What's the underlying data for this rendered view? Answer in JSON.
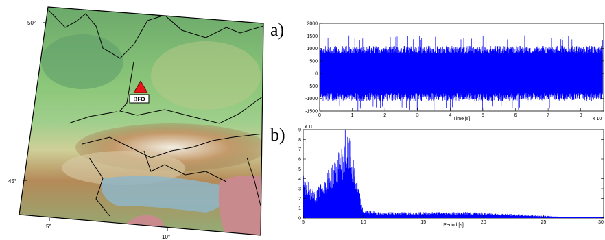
{
  "map": {
    "lat_labels": [
      "50°",
      "45°"
    ],
    "lon_labels": [
      "5°",
      "10°"
    ],
    "station": {
      "code": "BFO",
      "marker_color": "#e8161b"
    },
    "colors": {
      "lowland": "#7fbf6a",
      "hills": "#c8c98a",
      "alps": "#a87a4a",
      "peaks": "#f4f0e6",
      "lake": "#8fb6c8",
      "sea": "#c98a8e",
      "border": "#000000"
    }
  },
  "panel_labels": {
    "a": "a)",
    "b": "b)"
  },
  "chart_data": [
    {
      "type": "line",
      "xlabel": "Time [s]",
      "x_multiplier": "x 10",
      "xlim": [
        0,
        8.7
      ],
      "ylim": [
        -1500,
        2000
      ],
      "x_ticks": [
        "0",
        "1",
        "2",
        "3",
        "4",
        "5",
        "6",
        "7",
        "8"
      ],
      "y_ticks": [
        "2000",
        "1500",
        "1000",
        "500",
        "0",
        "-500",
        "-1000",
        "-1500"
      ],
      "series_color": "#0000ff",
      "envelope": {
        "typical_max": 1050,
        "typical_min": -1050,
        "peak_max": 1550,
        "peak_min": -1500
      }
    },
    {
      "type": "line",
      "xlabel": "Period [s]",
      "y_multiplier": "x 10",
      "xlim": [
        5,
        30
      ],
      "ylim": [
        0,
        9
      ],
      "x_ticks": [
        "5",
        "10",
        "15",
        "20",
        "25",
        "30"
      ],
      "y_ticks": [
        "9",
        "8",
        "7",
        "6",
        "5",
        "4",
        "3",
        "2",
        "1",
        "0"
      ],
      "series_color": "#0000ff",
      "peak_period": 8.5,
      "peak_value": 9
    }
  ]
}
